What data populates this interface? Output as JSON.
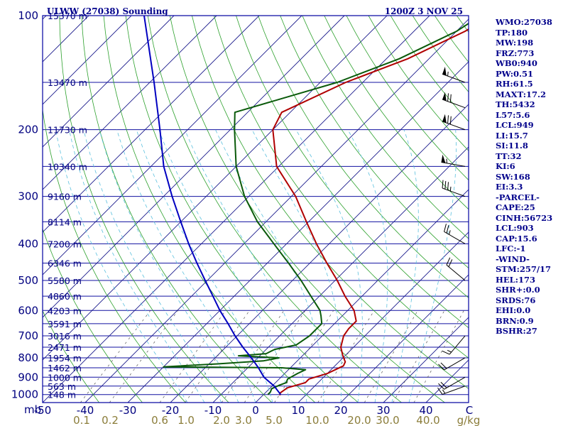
{
  "header": {
    "station": "ULWW (27038) Sounding",
    "time": "1200Z  3 NOV 25"
  },
  "colors": {
    "frame": "#0000a0",
    "isobar": "#1010a0",
    "isotherm": "#1a1a8c",
    "dry_adiabat": "#2ca02c",
    "moist_adiabat": "#5bc0de",
    "mixing_ratio": "#555555",
    "temperature": "#b00000",
    "dewpoint": "#0a5a0a",
    "parcel": "#0000c0",
    "tick_label": "#000080",
    "mixing_label": "#8b7d3a",
    "panel_text": "#00008b"
  },
  "chart_data": {
    "type": "line",
    "title": "ULWW (27038) Sounding",
    "subtitle": "1200Z  3 NOV 25",
    "xlabel": "",
    "ylabel": "mb",
    "log_y": true,
    "ylim": [
      1050,
      100
    ],
    "xlim_at_1050mb": [
      -50,
      50
    ],
    "skew": "isotherms slanted 45 degrees",
    "grid": true,
    "pressure_labels": [
      "100",
      "200",
      "300",
      "400",
      "500",
      "600",
      "700",
      "800",
      "900",
      "1000"
    ],
    "pressure_values": [
      100,
      200,
      300,
      400,
      500,
      600,
      700,
      800,
      900,
      1000
    ],
    "y_unit_label": "mb",
    "temperature_ticks": [
      {
        "value": -50,
        "label": "-50"
      },
      {
        "value": -40,
        "label": "-40"
      },
      {
        "value": -30,
        "label": "-30"
      },
      {
        "value": -20,
        "label": "-20"
      },
      {
        "value": -10,
        "label": "-10"
      },
      {
        "value": 0,
        "label": "0"
      },
      {
        "value": 10,
        "label": "10"
      },
      {
        "value": 20,
        "label": "20"
      },
      {
        "value": 30,
        "label": "30"
      },
      {
        "value": 40,
        "label": "40"
      }
    ],
    "last_temperature_tick": "C",
    "height_labels": [
      {
        "p": 100,
        "label": "15370 m"
      },
      {
        "p": 150,
        "label": "13470 m"
      },
      {
        "p": 200,
        "label": "11730 m"
      },
      {
        "p": 250,
        "label": "10340 m"
      },
      {
        "p": 300,
        "label": "9160 m"
      },
      {
        "p": 350,
        "label": "8114 m"
      },
      {
        "p": 400,
        "label": "7200 m"
      },
      {
        "p": 450,
        "label": "6346 m"
      },
      {
        "p": 500,
        "label": "5580 m"
      },
      {
        "p": 550,
        "label": "4860 m"
      },
      {
        "p": 600,
        "label": "4203 m"
      },
      {
        "p": 650,
        "label": "3591 m"
      },
      {
        "p": 700,
        "label": "3016 m"
      },
      {
        "p": 750,
        "label": "2471 m"
      },
      {
        "p": 800,
        "label": "1954 m"
      },
      {
        "p": 850,
        "label": "1462 m"
      },
      {
        "p": 900,
        "label": "1000 m"
      },
      {
        "p": 950,
        "label": "563 m"
      },
      {
        "p": 1000,
        "label": "148 m"
      }
    ],
    "mixing_ratio_labels": [
      {
        "value": 0.1,
        "label": "0.1"
      },
      {
        "value": 0.2,
        "label": "0.2"
      },
      {
        "value": 0.6,
        "label": "0.6"
      },
      {
        "value": 1.0,
        "label": "1.0"
      },
      {
        "value": 2.0,
        "label": "2.0"
      },
      {
        "value": 3.0,
        "label": "3.0"
      },
      {
        "value": 5.0,
        "label": "5.0"
      },
      {
        "value": 10.0,
        "label": "10.0"
      },
      {
        "value": 20.0,
        "label": "20.0"
      },
      {
        "value": 30.0,
        "label": "30.0"
      },
      {
        "value": 40.0,
        "label": "40.0"
      }
    ],
    "mixing_ratio_unit": "g/kg",
    "series": [
      {
        "key": "temperature",
        "points": [
          [
            1005,
            4.0
          ],
          [
            990,
            3.5
          ],
          [
            960,
            4.0
          ],
          [
            930,
            7.0
          ],
          [
            910,
            7.0
          ],
          [
            880,
            10.0
          ],
          [
            860,
            11.0
          ],
          [
            840,
            12.0
          ],
          [
            820,
            11.5
          ],
          [
            790,
            9.5
          ],
          [
            750,
            7.0
          ],
          [
            700,
            5.0
          ],
          [
            670,
            4.5
          ],
          [
            640,
            4.5
          ],
          [
            600,
            1.5
          ],
          [
            550,
            -4.0
          ],
          [
            500,
            -9.5
          ],
          [
            450,
            -16.0
          ],
          [
            400,
            -23.0
          ],
          [
            350,
            -30.5
          ],
          [
            300,
            -39.0
          ],
          [
            250,
            -50.5
          ],
          [
            200,
            -60.0
          ],
          [
            180,
            -62.0
          ],
          [
            150,
            -54.0
          ],
          [
            130,
            -45.0
          ],
          [
            110,
            -38.0
          ],
          [
            100,
            -35.5
          ]
        ]
      },
      {
        "key": "dewpoint",
        "points": [
          [
            1000,
            1.0
          ],
          [
            985,
            1.0
          ],
          [
            965,
            0.5
          ],
          [
            945,
            1.5
          ],
          [
            930,
            2.5
          ],
          [
            910,
            2.0
          ],
          [
            880,
            3.0
          ],
          [
            860,
            4.0
          ],
          [
            850,
            -2.0
          ],
          [
            845,
            -30.0
          ],
          [
            830,
            -18.0
          ],
          [
            815,
            -8.0
          ],
          [
            800,
            -5.0
          ],
          [
            790,
            -15.0
          ],
          [
            780,
            -9.0
          ],
          [
            760,
            -8.0
          ],
          [
            740,
            -4.0
          ],
          [
            700,
            -3.0
          ],
          [
            650,
            -3.0
          ],
          [
            620,
            -5.0
          ],
          [
            600,
            -6.5
          ],
          [
            550,
            -12.0
          ],
          [
            500,
            -18.0
          ],
          [
            450,
            -25.0
          ],
          [
            400,
            -33.0
          ],
          [
            350,
            -42.0
          ],
          [
            300,
            -51.0
          ],
          [
            250,
            -60.0
          ],
          [
            200,
            -69.0
          ],
          [
            180,
            -73.0
          ],
          [
            150,
            -56.0
          ],
          [
            130,
            -47.0
          ],
          [
            110,
            -40.0
          ],
          [
            100,
            -38.0
          ]
        ]
      },
      {
        "key": "parcel",
        "points": [
          [
            1000,
            4.0
          ],
          [
            950,
            0.5
          ],
          [
            900,
            -4.0
          ],
          [
            850,
            -7.5
          ],
          [
            800,
            -11.5
          ],
          [
            750,
            -16.0
          ],
          [
            700,
            -20.5
          ],
          [
            650,
            -25.0
          ],
          [
            600,
            -30.0
          ],
          [
            550,
            -35.0
          ],
          [
            500,
            -40.5
          ],
          [
            450,
            -46.5
          ],
          [
            400,
            -53.0
          ],
          [
            350,
            -60.0
          ],
          [
            300,
            -68.0
          ],
          [
            250,
            -77.0
          ],
          [
            200,
            -86.5
          ],
          [
            150,
            -99.0
          ],
          [
            100,
            -117.0
          ]
        ]
      }
    ],
    "wind_barbs": [
      {
        "p": 150,
        "dir": 290,
        "spd": 55
      },
      {
        "p": 175,
        "dir": 290,
        "spd": 70
      },
      {
        "p": 200,
        "dir": 290,
        "spd": 70
      },
      {
        "p": 250,
        "dir": 280,
        "spd": 55
      },
      {
        "p": 300,
        "dir": 290,
        "spd": 35
      },
      {
        "p": 400,
        "dir": 300,
        "spd": 25
      },
      {
        "p": 500,
        "dir": 310,
        "spd": 20
      },
      {
        "p": 700,
        "dir": 220,
        "spd": 15
      },
      {
        "p": 800,
        "dir": 240,
        "spd": 20
      },
      {
        "p": 900,
        "dir": 240,
        "spd": 20
      },
      {
        "p": 950,
        "dir": 250,
        "spd": 15
      }
    ]
  },
  "panel": [
    "WMO:27038",
    "TP:180",
    "MW:198",
    "FRZ:773",
    "WB0:940",
    "PW:0.51",
    "RH:61.5",
    "MAXT:17.2",
    "TH:5432",
    "L57:5.6",
    "LCL:949",
    "LI:15.7",
    "SI:11.8",
    "TT:32",
    "KI:6",
    "SW:168",
    "EI:3.3",
    "-PARCEL-",
    "CAPE:25",
    "CINH:56723",
    "LCL:903",
    "CAP:15.6",
    "LFC:-1",
    "-WIND-",
    "STM:257/17",
    "HEL:173",
    "SHR+:0.0",
    "SRDS:76",
    "EHI:0.0",
    "BRN:0.9",
    "BSHR:27"
  ]
}
